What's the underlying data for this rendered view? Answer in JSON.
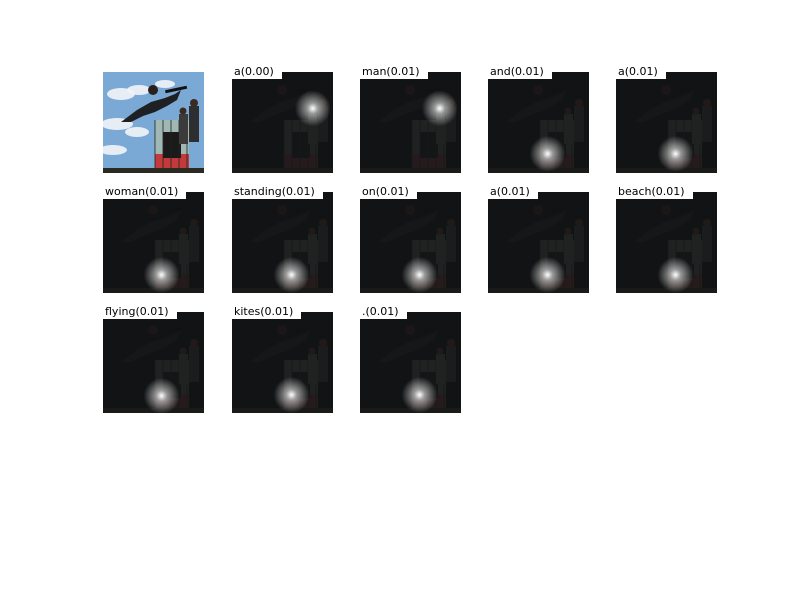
{
  "figure": {
    "panels": [
      {
        "kind": "original",
        "caption": "",
        "attention_center": null
      },
      {
        "kind": "attention",
        "caption": "a(0.00)",
        "attention_center": [
          0.8,
          0.36
        ]
      },
      {
        "kind": "attention",
        "caption": "man(0.01)",
        "attention_center": [
          0.79,
          0.36
        ]
      },
      {
        "kind": "attention",
        "caption": "and(0.01)",
        "attention_center": [
          0.59,
          0.81
        ]
      },
      {
        "kind": "attention",
        "caption": "a(0.01)",
        "attention_center": [
          0.59,
          0.81
        ]
      },
      {
        "kind": "attention",
        "caption": "woman(0.01)",
        "attention_center": [
          0.58,
          0.82
        ]
      },
      {
        "kind": "attention",
        "caption": "standing(0.01)",
        "attention_center": [
          0.59,
          0.82
        ]
      },
      {
        "kind": "attention",
        "caption": "on(0.01)",
        "attention_center": [
          0.59,
          0.82
        ]
      },
      {
        "kind": "attention",
        "caption": "a(0.01)",
        "attention_center": [
          0.59,
          0.82
        ]
      },
      {
        "kind": "attention",
        "caption": "beach(0.01)",
        "attention_center": [
          0.59,
          0.82
        ]
      },
      {
        "kind": "attention",
        "caption": "flying(0.01)",
        "attention_center": [
          0.58,
          0.83
        ]
      },
      {
        "kind": "attention",
        "caption": "kites(0.01)",
        "attention_center": [
          0.59,
          0.82
        ]
      },
      {
        "kind": "attention",
        "caption": ".(0.01)",
        "attention_center": [
          0.59,
          0.82
        ]
      }
    ],
    "colors": {
      "sky": "#7aa9d6",
      "cloud": "#f2f4f7",
      "dim_overlay": "#121314",
      "attention_glow": "#ffffff",
      "ramp_panel": "#9fb8b3",
      "ramp_red": "#c23a3a",
      "ground": "#2a2a22"
    }
  }
}
